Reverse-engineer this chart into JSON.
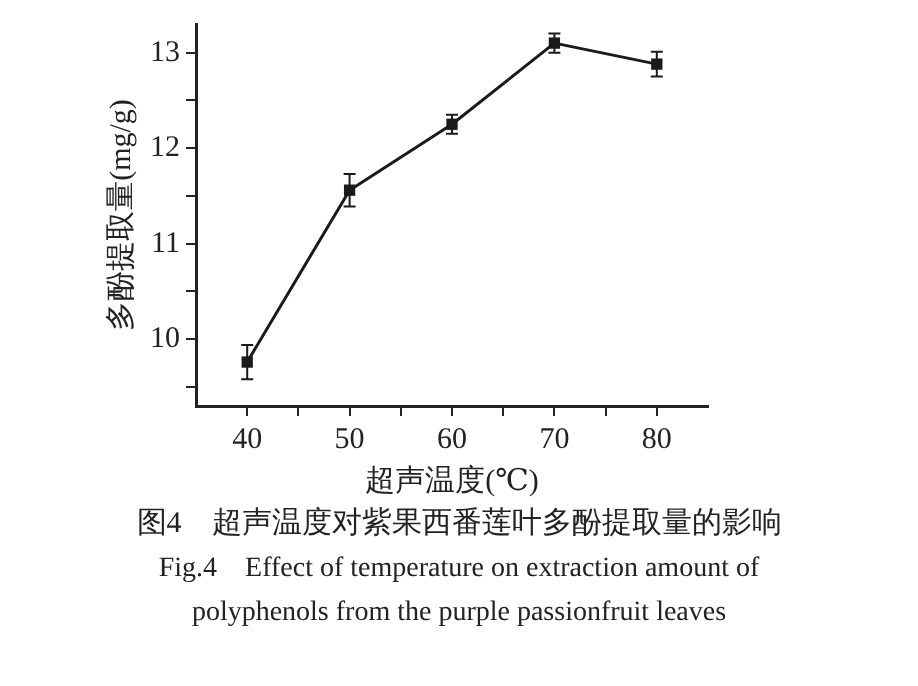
{
  "chart_data": {
    "type": "line",
    "title": "图4　超声温度对紫果西番莲叶多酚提取量的影响",
    "subtitle": "Fig.4　Effect of temperature on extraction amount of polyphenols from the purple passionfruit leaves",
    "xlabel": "超声温度(℃)",
    "ylabel": "多酚提取量(mg/g)",
    "x": [
      40,
      50,
      60,
      70,
      80
    ],
    "series": [
      {
        "color": "#1a1a1a",
        "values": [
          9.76,
          11.56,
          12.25,
          13.1,
          12.88
        ],
        "errors": [
          0.18,
          0.17,
          0.1,
          0.1,
          0.13
        ]
      }
    ],
    "xlim": [
      35,
      85
    ],
    "xticks": [
      40,
      {
        "value": 45,
        "label": null
      },
      50,
      {
        "value": 55,
        "label": null
      },
      60,
      {
        "value": 65,
        "label": null
      },
      70,
      {
        "value": 75,
        "label": null
      },
      80
    ],
    "ylim": [
      9.3,
      13.3
    ],
    "yticks": [
      {
        "value": 9.5,
        "label": null
      },
      10,
      {
        "value": 10.5,
        "label": null
      },
      11,
      {
        "value": 11.5,
        "label": null
      },
      12,
      {
        "value": 12.5,
        "label": null
      },
      13
    ],
    "marker": "square",
    "line_style": "solid",
    "grid": false,
    "legend": false
  }
}
